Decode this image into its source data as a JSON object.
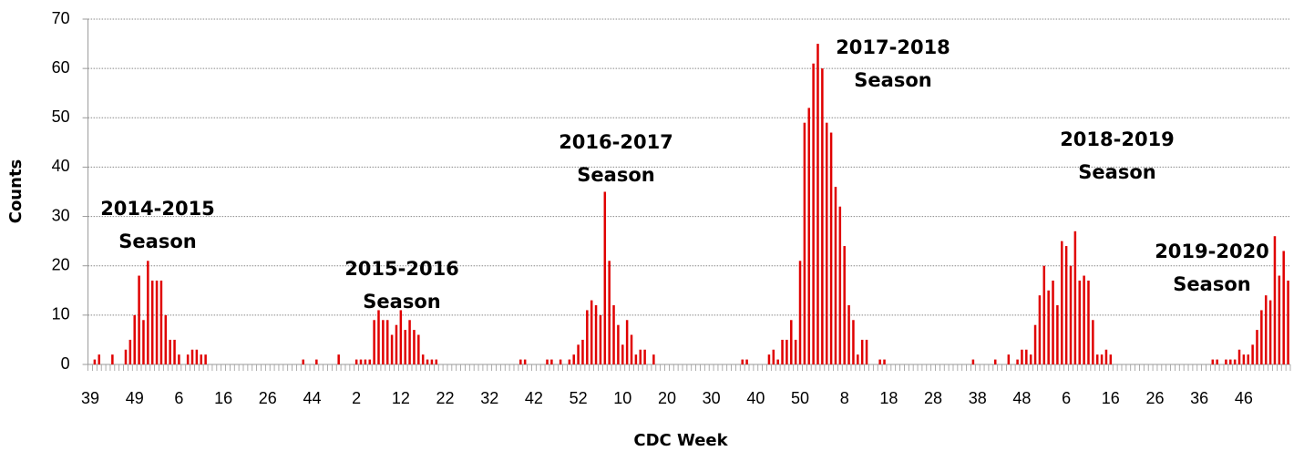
{
  "chart_data": {
    "type": "bar",
    "x_label": "CDC Week",
    "y_label": "Counts",
    "color": "#e00000",
    "grid": true,
    "ylim": [
      0,
      70
    ],
    "yticks": [
      0,
      10,
      20,
      30,
      40,
      50,
      60,
      70
    ],
    "categories": [
      "39",
      null,
      null,
      null,
      null,
      null,
      null,
      null,
      null,
      null,
      "49",
      null,
      null,
      null,
      null,
      null,
      null,
      null,
      null,
      null,
      "6",
      null,
      null,
      null,
      null,
      null,
      null,
      null,
      null,
      null,
      "16",
      null,
      null,
      null,
      null,
      null,
      null,
      null,
      null,
      null,
      "26",
      null,
      null,
      null,
      null,
      null,
      null,
      null,
      null,
      null,
      "44",
      null,
      null,
      null,
      null,
      null,
      null,
      null,
      null,
      null,
      "2",
      null,
      null,
      null,
      null,
      null,
      null,
      null,
      null,
      null,
      "12",
      null,
      null,
      null,
      null,
      null,
      null,
      null,
      null,
      null,
      "22",
      null,
      null,
      null,
      null,
      null,
      null,
      null,
      null,
      null,
      "32",
      null,
      null,
      null,
      null,
      null,
      null,
      null,
      null,
      null,
      "42",
      null,
      null,
      null,
      null,
      null,
      null,
      null,
      null,
      null,
      "52",
      null,
      null,
      null,
      null,
      null,
      null,
      null,
      null,
      null,
      "10",
      null,
      null,
      null,
      null,
      null,
      null,
      null,
      null,
      null,
      "20",
      null,
      null,
      null,
      null,
      null,
      null,
      null,
      null,
      null,
      "30",
      null,
      null,
      null,
      null,
      null,
      null,
      null,
      null,
      null,
      "40",
      null,
      null,
      null,
      null,
      null,
      null,
      null,
      null,
      null,
      "50",
      null,
      null,
      null,
      null,
      null,
      null,
      null,
      null,
      null,
      "8",
      null,
      null,
      null,
      null,
      null,
      null,
      null,
      null,
      null,
      "18",
      null,
      null,
      null,
      null,
      null,
      null,
      null,
      null,
      null,
      "28",
      null,
      null,
      null,
      null,
      null,
      null,
      null,
      null,
      null,
      "38",
      null,
      null,
      null,
      null,
      null,
      null,
      null,
      null,
      null,
      "48",
      null,
      null,
      null,
      null,
      null,
      null,
      null,
      null,
      null,
      "6",
      null,
      null,
      null,
      null,
      null,
      null,
      null,
      null,
      null,
      "16",
      null,
      null,
      null,
      null,
      null,
      null,
      null,
      null,
      null,
      "26",
      null,
      null,
      null,
      null,
      null,
      null,
      null,
      null,
      null,
      "36",
      null,
      null,
      null,
      null,
      null,
      null,
      null,
      null,
      null,
      "46",
      null,
      null,
      null,
      null,
      null,
      null,
      null,
      null,
      null,
      null
    ],
    "values": [
      0,
      1,
      2,
      0,
      0,
      2,
      0,
      0,
      3,
      5,
      10,
      18,
      9,
      21,
      17,
      17,
      17,
      10,
      5,
      5,
      2,
      0,
      2,
      3,
      3,
      2,
      2,
      0,
      0,
      0,
      0,
      0,
      0,
      0,
      0,
      0,
      0,
      0,
      0,
      0,
      0,
      0,
      0,
      0,
      0,
      0,
      0,
      0,
      1,
      0,
      0,
      1,
      0,
      0,
      0,
      0,
      2,
      0,
      0,
      0,
      1,
      1,
      1,
      1,
      9,
      11,
      9,
      9,
      6,
      8,
      11,
      7,
      9,
      7,
      6,
      2,
      1,
      1,
      1,
      0,
      0,
      0,
      0,
      0,
      0,
      0,
      0,
      0,
      0,
      0,
      0,
      0,
      0,
      0,
      0,
      0,
      0,
      1,
      1,
      0,
      0,
      0,
      0,
      1,
      1,
      0,
      1,
      0,
      1,
      2,
      4,
      5,
      11,
      13,
      12,
      10,
      35,
      21,
      12,
      8,
      4,
      9,
      6,
      2,
      3,
      3,
      0,
      2,
      0,
      0,
      0,
      0,
      0,
      0,
      0,
      0,
      0,
      0,
      0,
      0,
      0,
      0,
      0,
      0,
      0,
      0,
      0,
      1,
      1,
      0,
      0,
      0,
      0,
      2,
      3,
      1,
      5,
      5,
      9,
      5,
      21,
      49,
      52,
      61,
      65,
      60,
      49,
      47,
      36,
      32,
      24,
      12,
      9,
      2,
      5,
      5,
      0,
      0,
      1,
      1,
      0,
      0,
      0,
      0,
      0,
      0,
      0,
      0,
      0,
      0,
      0,
      0,
      0,
      0,
      0,
      0,
      0,
      0,
      0,
      1,
      0,
      0,
      0,
      0,
      1,
      0,
      0,
      2,
      0,
      1,
      3,
      3,
      2,
      8,
      14,
      20,
      15,
      17,
      12,
      25,
      24,
      20,
      27,
      17,
      18,
      17,
      9,
      2,
      2,
      3,
      2,
      0,
      0,
      0,
      0,
      0,
      0,
      0,
      0,
      0,
      0,
      0,
      0,
      0,
      0,
      0,
      0,
      0,
      0,
      0,
      0,
      0,
      0,
      1,
      1,
      0,
      1,
      1,
      1,
      3,
      2,
      2,
      4,
      7,
      11,
      14,
      13,
      26,
      18,
      23,
      17
    ],
    "annotations": [
      {
        "lines": [
          "2014-2015",
          "Season"
        ]
      },
      {
        "lines": [
          "2015-2016",
          "Season"
        ]
      },
      {
        "lines": [
          "2016-2017",
          "Season"
        ]
      },
      {
        "lines": [
          "2017-2018",
          "Season"
        ]
      },
      {
        "lines": [
          "2018-2019",
          "Season"
        ]
      },
      {
        "lines": [
          "2019-2020",
          "Season"
        ]
      }
    ]
  }
}
